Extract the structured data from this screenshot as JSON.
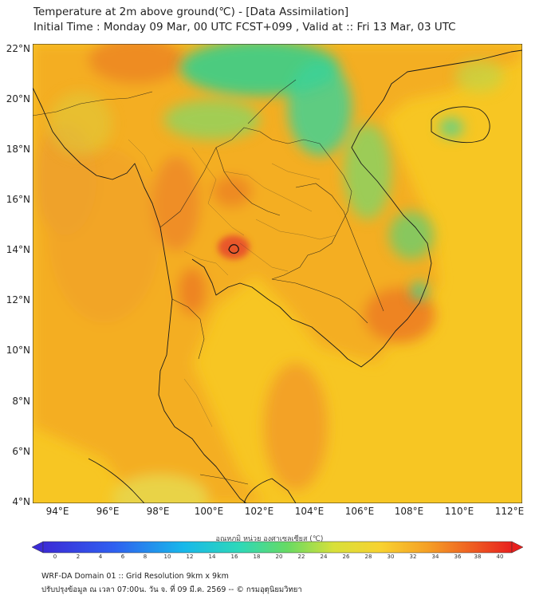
{
  "title": {
    "line1": "Temperature at 2m above ground(℃) - [Data Assimilation]",
    "line2": "Initial Time : Monday 09 Mar, 00 UTC FCST+099 , Valid at :: Fri 13 Mar, 03 UTC"
  },
  "lat_labels": [
    "22°N",
    "20°N",
    "18°N",
    "16°N",
    "14°N",
    "12°N",
    "10°N",
    "8°N",
    "6°N",
    "4°N"
  ],
  "lon_labels": [
    "94°E",
    "96°E",
    "98°E",
    "100°E",
    "102°E",
    "104°E",
    "106°E",
    "108°E",
    "110°E",
    "112°E"
  ],
  "colorbar": {
    "label": "อุณหภูมิ หน่วย องศาเซลเซียส (℃)",
    "ticks": [
      "0",
      "2",
      "4",
      "6",
      "8",
      "10",
      "12",
      "14",
      "16",
      "18",
      "20",
      "22",
      "24",
      "26",
      "28",
      "30",
      "32",
      "34",
      "36",
      "38",
      "40"
    ]
  },
  "footer": {
    "line1": "WRF-DA Domain 01 :: Grid Resolution 9km x 9km",
    "line2": "ปรับปรุงข้อมูล ณ เวลา 07:00น. วัน จ. ที่ 09 มี.ค. 2569 -- © กรมอุตุนิยมวิทยา"
  },
  "colors": {
    "sea": "#f7c623",
    "land": "#f5b526",
    "hot": "#ee7a1f",
    "cool": "#3fd48a",
    "border": "#1a1a1a"
  }
}
